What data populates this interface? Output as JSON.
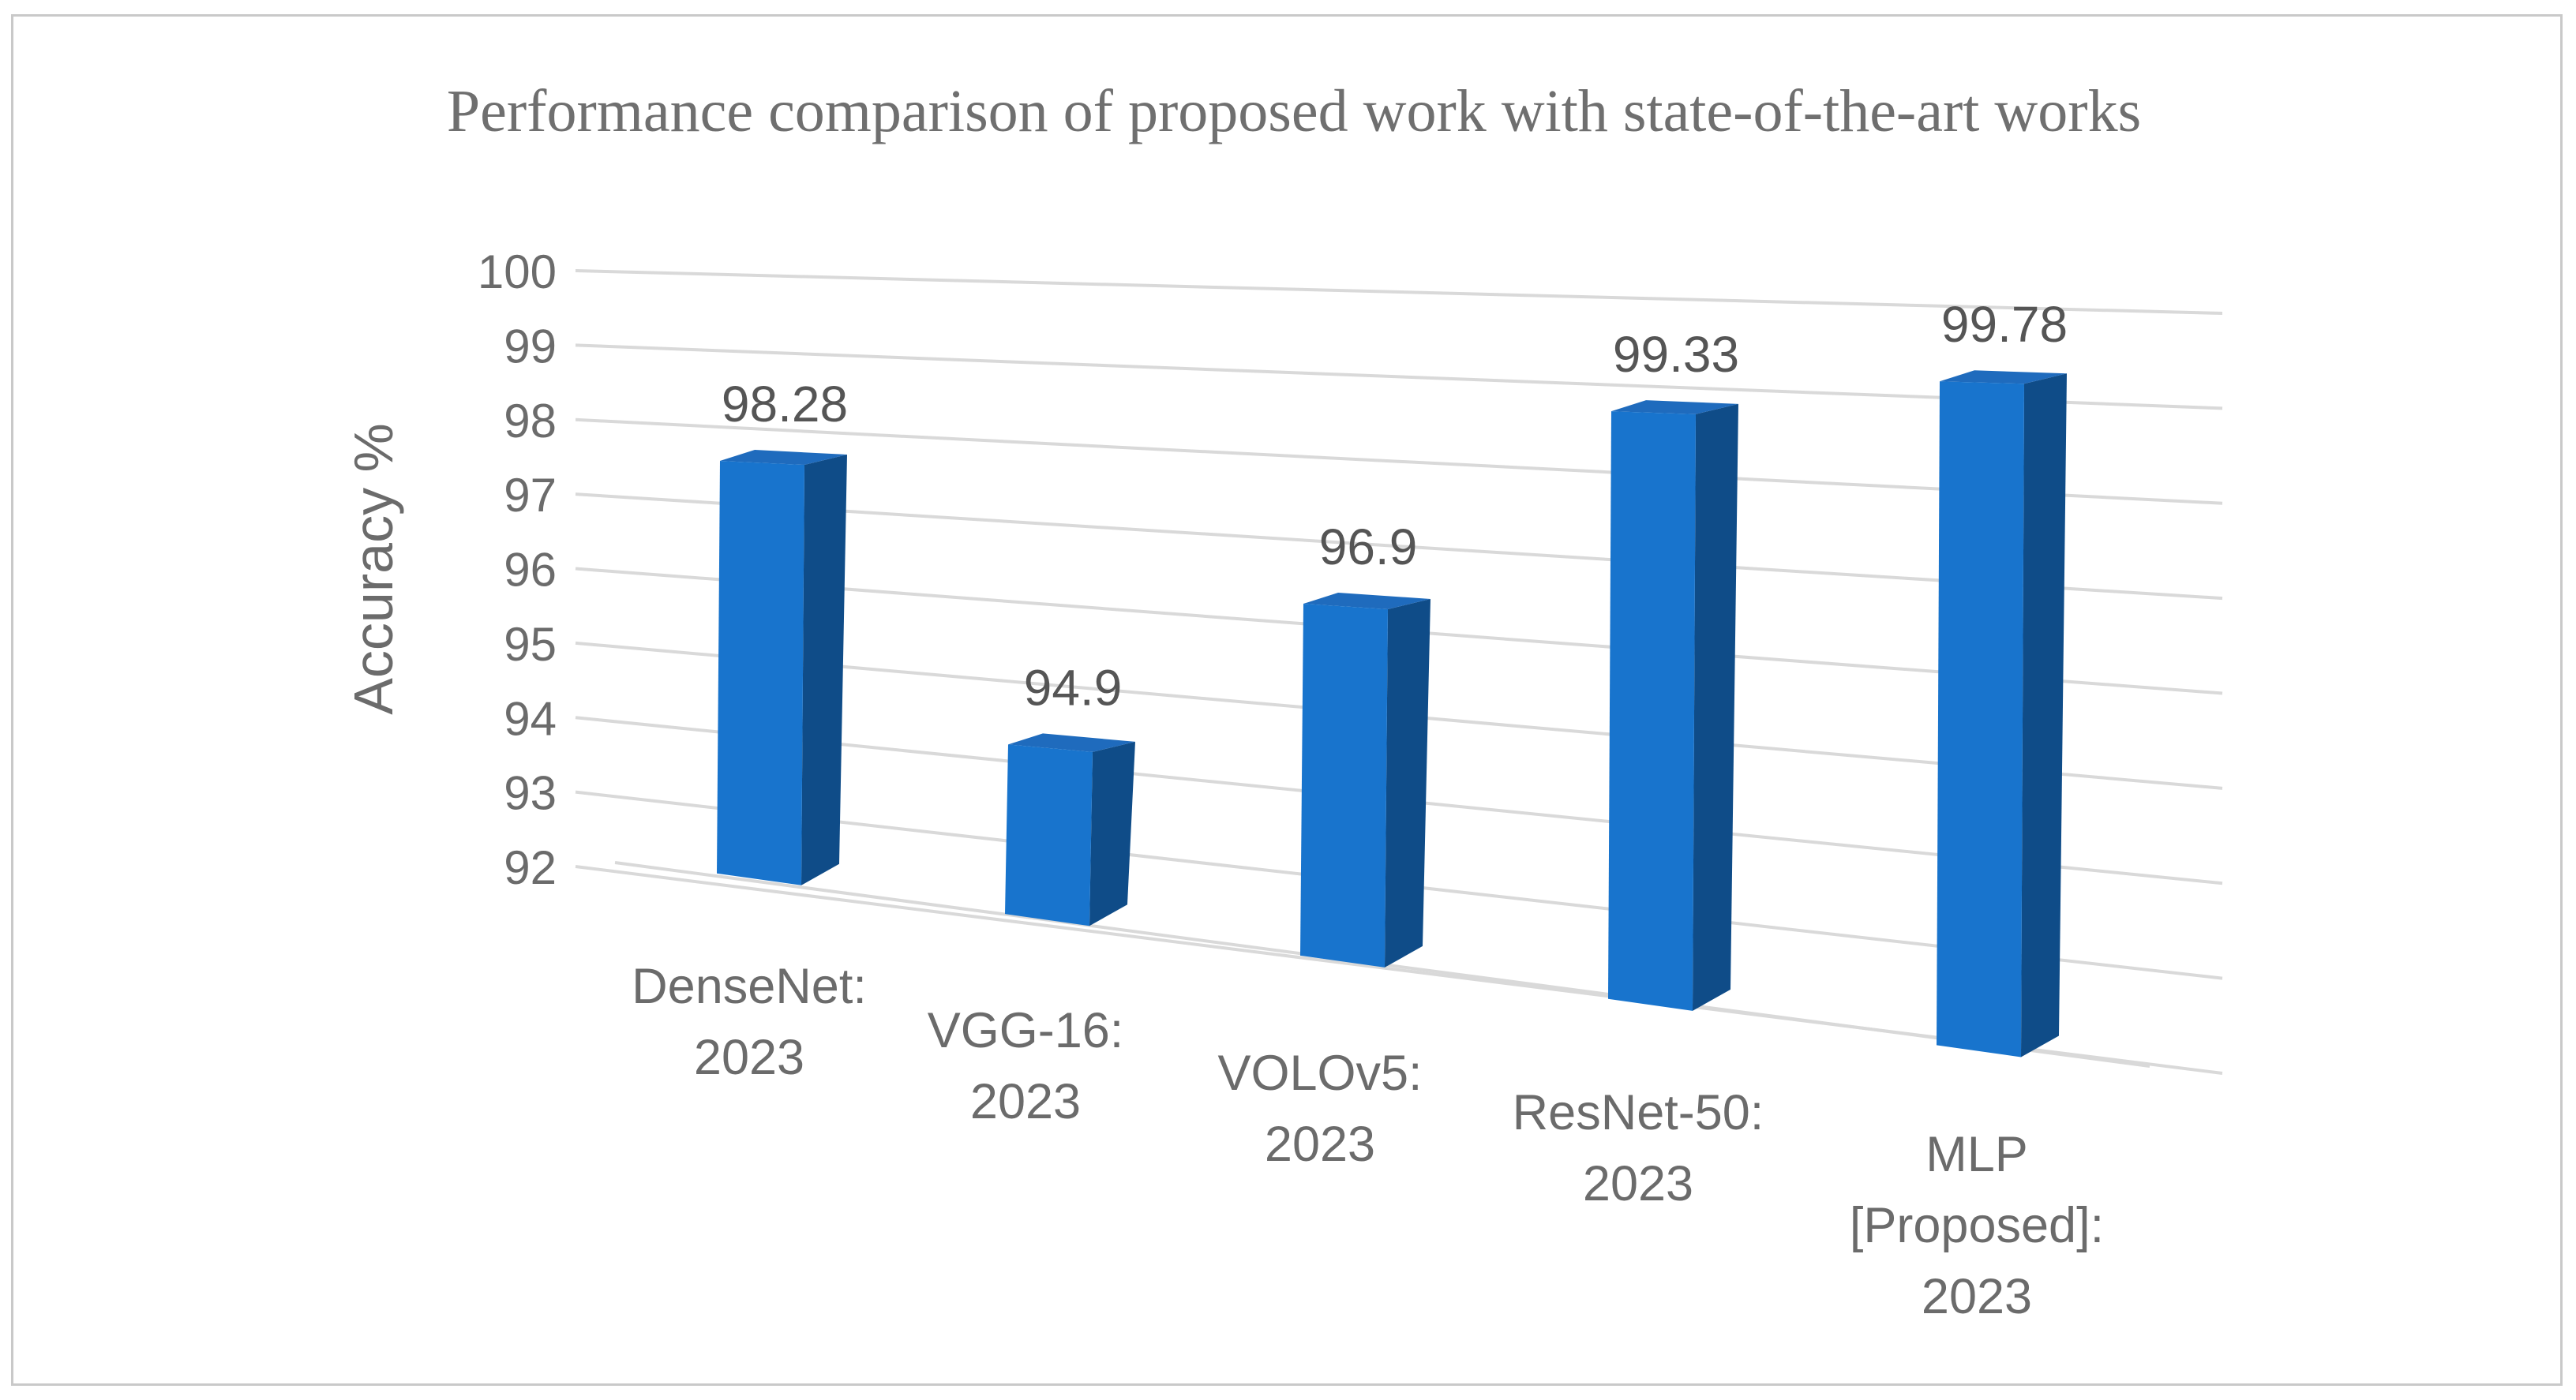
{
  "chart_data": {
    "type": "bar",
    "title": "Performance comparison of proposed work with state-of-the-art works",
    "xlabel": "",
    "ylabel": "Accuracy %",
    "ylim": [
      92,
      100
    ],
    "yticks": [
      "92",
      "93",
      "94",
      "95",
      "96",
      "97",
      "98",
      "99",
      "100"
    ],
    "categories": [
      [
        "DenseNet:",
        "2023"
      ],
      [
        "VGG-16:",
        "2023"
      ],
      [
        "VOLOv5:",
        "2023"
      ],
      [
        "ResNet-50:",
        "2023"
      ],
      [
        "MLP",
        "[Proposed]:",
        "2023"
      ]
    ],
    "values": [
      98.28,
      94.9,
      96.9,
      99.33,
      99.78
    ],
    "data_labels": [
      "98.28",
      "94.9",
      "96.9",
      "99.33",
      "99.78"
    ],
    "grid": true,
    "legend": "none",
    "style": "3d-column",
    "colors": {
      "bar_front": "#1874cd",
      "bar_side": "#0f4c88",
      "bar_top": "#1f6bbd",
      "grid": "#d9d9d9",
      "border": "#c9c9c9"
    }
  }
}
